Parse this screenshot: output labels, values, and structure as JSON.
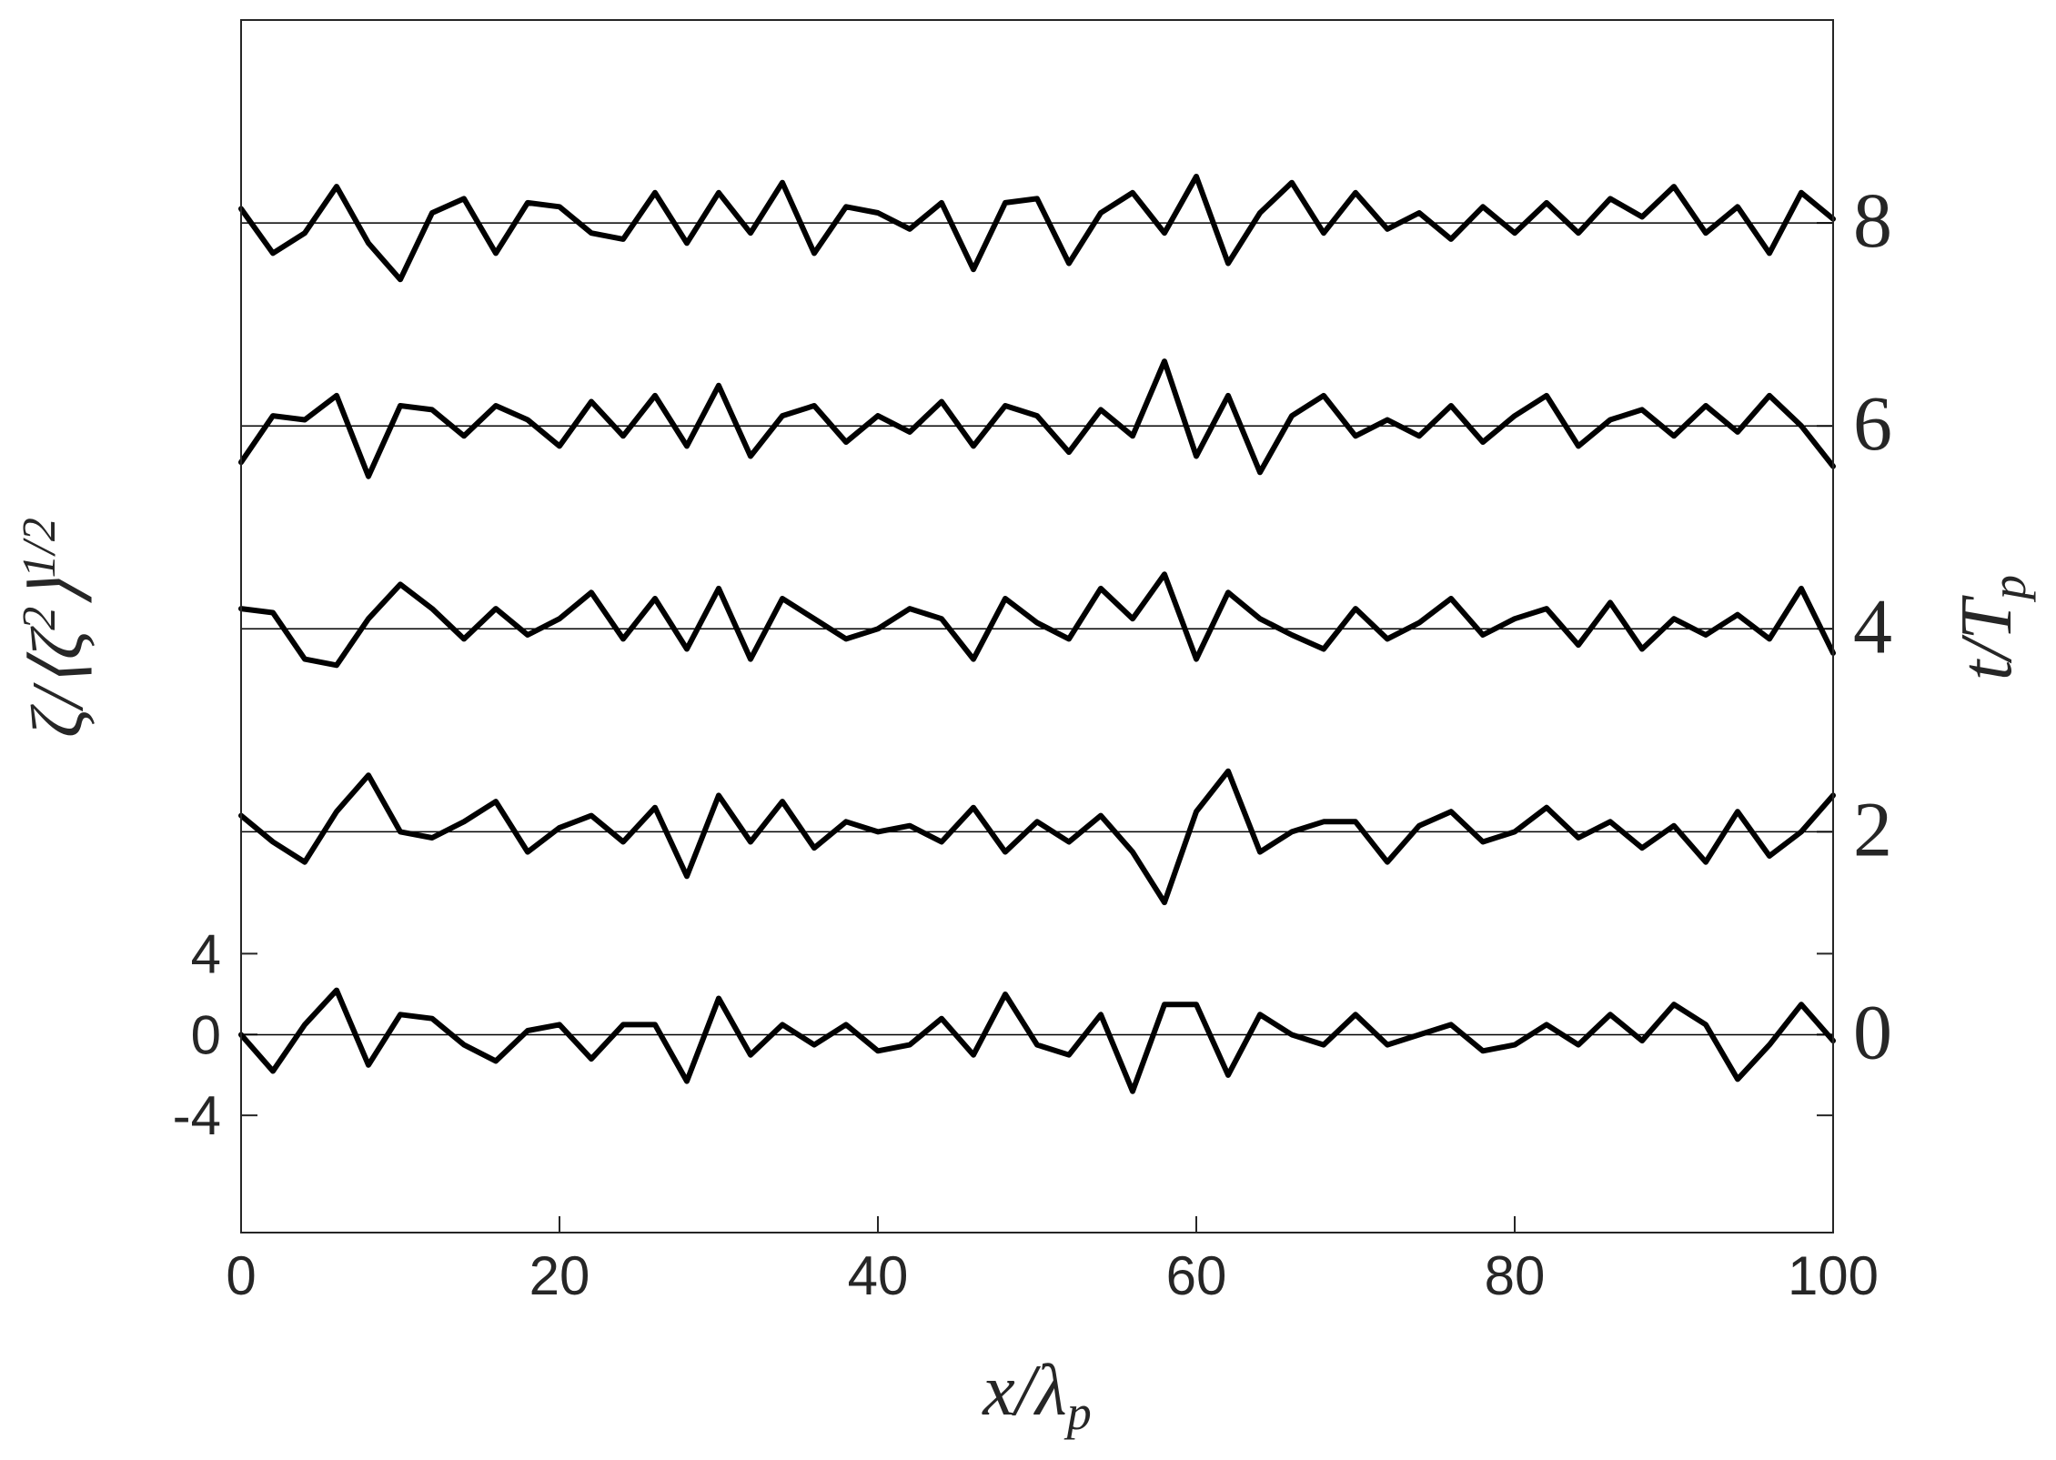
{
  "chart_data": {
    "type": "line",
    "xlabel": {
      "main": "x/λ",
      "sub": "p"
    },
    "ylabel": {
      "main": "ζ/⟨ζ",
      "sup1": "2",
      "mid": "⟩",
      "sup2": "1/2"
    },
    "y2label": {
      "main": "t/T",
      "sub": "p"
    },
    "xlim": [
      0,
      100
    ],
    "xticks": [
      0,
      20,
      40,
      60,
      80,
      100
    ],
    "ylim": [
      -9.8,
      50.2
    ],
    "yticks": [
      -4,
      0,
      4
    ],
    "y2lim": [
      -1.95,
      10
    ],
    "y2ticks": [
      0,
      2,
      4,
      6,
      8
    ],
    "color": "#000000",
    "x": [
      0,
      2,
      4,
      6,
      8,
      10,
      12,
      14,
      16,
      18,
      20,
      22,
      24,
      26,
      28,
      30,
      32,
      34,
      36,
      38,
      40,
      42,
      44,
      46,
      48,
      50,
      52,
      54,
      56,
      58,
      60,
      62,
      64,
      66,
      68,
      70,
      72,
      74,
      76,
      78,
      80,
      82,
      84,
      86,
      88,
      90,
      92,
      94,
      96,
      98,
      100
    ],
    "series": [
      {
        "t": 0,
        "values": [
          0,
          -1.8,
          0.5,
          2.2,
          -1.5,
          1,
          0.8,
          -0.5,
          -1.3,
          0.2,
          0.5,
          -1.2,
          0.5,
          0.5,
          -2.3,
          1.8,
          -1,
          0.5,
          -0.5,
          0.5,
          -0.8,
          -0.5,
          0.8,
          -1,
          2,
          -0.5,
          -1,
          1,
          -2.8,
          1.5,
          1.5,
          -2,
          1,
          0,
          -0.5,
          1,
          -0.5,
          0,
          0.5,
          -0.8,
          -0.5,
          0.5,
          -0.5,
          1,
          -0.3,
          1.5,
          0.5,
          -2.2,
          -0.5,
          1.5,
          -0.3
        ]
      },
      {
        "t": 2,
        "values": [
          0.8,
          -0.5,
          -1.5,
          1,
          2.8,
          0,
          -0.3,
          0.5,
          1.5,
          -1,
          0.2,
          0.8,
          -0.5,
          1.2,
          -2.2,
          1.8,
          -0.5,
          1.5,
          -0.8,
          0.5,
          0,
          0.3,
          -0.5,
          1.2,
          -1,
          0.5,
          -0.5,
          0.8,
          -1,
          -3.5,
          1,
          3,
          -1,
          0,
          0.5,
          0.5,
          -1.5,
          0.3,
          1,
          -0.5,
          0,
          1.2,
          -0.3,
          0.5,
          -0.8,
          0.3,
          -1.5,
          1,
          -1.2,
          0,
          1.8
        ]
      },
      {
        "t": 4,
        "values": [
          1,
          0.8,
          -1.5,
          -1.8,
          0.5,
          2.2,
          1,
          -0.5,
          1,
          -0.3,
          0.5,
          1.8,
          -0.5,
          1.5,
          -1,
          2,
          -1.5,
          1.5,
          0.5,
          -0.5,
          0,
          1,
          0.5,
          -1.5,
          1.5,
          0.3,
          -0.5,
          2,
          0.5,
          2.7,
          -1.5,
          1.8,
          0.5,
          -0.3,
          -1,
          1,
          -0.5,
          0.3,
          1.5,
          -0.3,
          0.5,
          1,
          -0.8,
          1.3,
          -1,
          0.5,
          -0.3,
          0.7,
          -0.5,
          2,
          -1.2
        ]
      },
      {
        "t": 6,
        "values": [
          -1.8,
          0.5,
          0.3,
          1.5,
          -2.5,
          1,
          0.8,
          -0.5,
          1,
          0.3,
          -1,
          1.2,
          -0.5,
          1.5,
          -1,
          2,
          -1.5,
          0.5,
          1,
          -0.8,
          0.5,
          -0.3,
          1.2,
          -1,
          1,
          0.5,
          -1.3,
          0.8,
          -0.5,
          3.2,
          -1.5,
          1.5,
          -2.3,
          0.5,
          1.5,
          -0.5,
          0.3,
          -0.5,
          1,
          -0.8,
          0.5,
          1.5,
          -1,
          0.3,
          0.8,
          -0.5,
          1,
          -0.3,
          1.5,
          0,
          -2
        ]
      },
      {
        "t": 8,
        "values": [
          0.7,
          -1.5,
          -0.5,
          1.8,
          -1,
          -2.8,
          0.5,
          1.2,
          -1.5,
          1,
          0.8,
          -0.5,
          -0.8,
          1.5,
          -1,
          1.5,
          -0.5,
          2,
          -1.5,
          0.8,
          0.5,
          -0.3,
          1,
          -2.3,
          1,
          1.2,
          -2,
          0.5,
          1.5,
          -0.5,
          2.3,
          -2,
          0.5,
          2,
          -0.5,
          1.5,
          -0.3,
          0.5,
          -0.8,
          0.8,
          -0.5,
          1,
          -0.5,
          1.2,
          0.3,
          1.8,
          -0.5,
          0.8,
          -1.5,
          1.5,
          0.2
        ]
      }
    ]
  }
}
